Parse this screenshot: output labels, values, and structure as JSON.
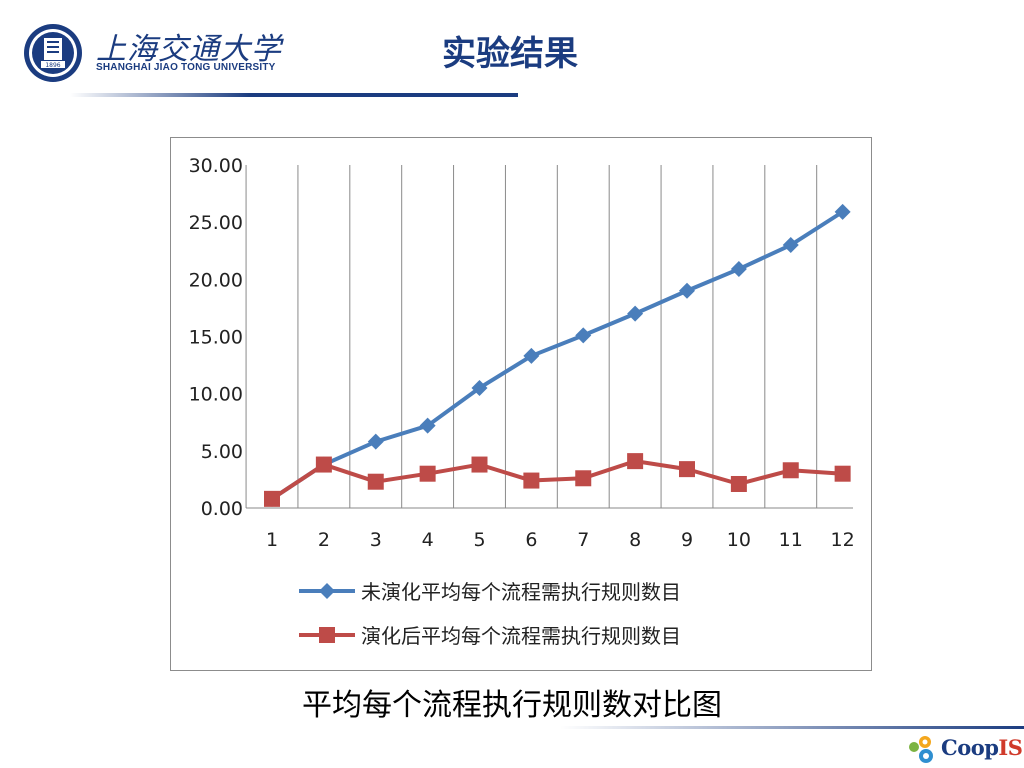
{
  "header": {
    "title": "实验结果",
    "logo_cn": "上海交通大学",
    "logo_en": "SHANGHAI  JIAO TONG  UNIVERSITY",
    "seal_year": "1896"
  },
  "caption": "平均每个流程执行规则数对比图",
  "footer": {
    "logo_prefix": "Coop",
    "logo_suffix": "IS"
  },
  "colors": {
    "accent": "#1b3c80",
    "series1": "#4a7ebb",
    "series2": "#be4b48",
    "coop_prefix": "#1b3c80",
    "coop_suffix": "#d03a2a"
  },
  "chart_data": {
    "type": "line",
    "x": [
      "1",
      "2",
      "3",
      "4",
      "5",
      "6",
      "7",
      "8",
      "9",
      "10",
      "11",
      "12"
    ],
    "ylim": [
      0,
      30
    ],
    "yticks": [
      "0.00",
      "5.00",
      "10.00",
      "15.00",
      "20.00",
      "25.00",
      "30.00"
    ],
    "grid": "vertical",
    "legend_position": "bottom",
    "series": [
      {
        "name": "未演化平均每个流程需执行规则数目",
        "marker": "diamond",
        "values": [
          0.8,
          3.8,
          5.8,
          7.2,
          10.5,
          13.3,
          15.1,
          17.0,
          19.0,
          20.9,
          23.0,
          25.9
        ]
      },
      {
        "name": "演化后平均每个流程需执行规则数目",
        "marker": "square",
        "values": [
          0.8,
          3.8,
          2.3,
          3.0,
          3.8,
          2.4,
          2.6,
          4.1,
          3.4,
          2.1,
          3.3,
          3.0
        ]
      }
    ]
  }
}
